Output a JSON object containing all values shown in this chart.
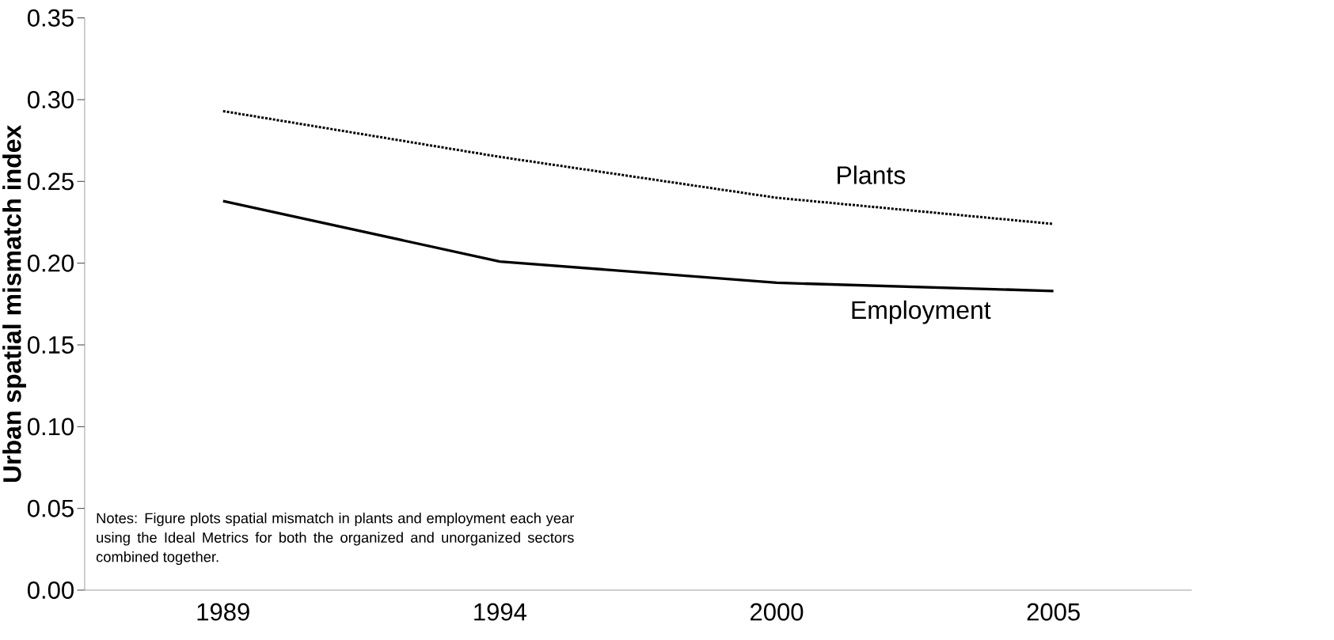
{
  "chart_data": {
    "type": "line",
    "ylabel": "Urban spatial mismatch index",
    "categories": [
      "1989",
      "1994",
      "2000",
      "2005"
    ],
    "series": [
      {
        "name": "Plants",
        "color": "#000000",
        "line_style": "dotted",
        "values": [
          0.293,
          0.265,
          0.24,
          0.224
        ]
      },
      {
        "name": "Employment",
        "color": "#000000",
        "line_style": "solid",
        "values": [
          0.238,
          0.201,
          0.188,
          0.183
        ]
      }
    ],
    "ylim": [
      0,
      0.35
    ],
    "yticks": [
      {
        "value": 0,
        "label": "0.00"
      },
      {
        "value": 0.05,
        "label": "0.05"
      },
      {
        "value": 0.1,
        "label": "0.10"
      },
      {
        "value": 0.15,
        "label": "0.15"
      },
      {
        "value": 0.2,
        "label": "0.20"
      },
      {
        "value": 0.25,
        "label": "0.25"
      },
      {
        "value": 0.3,
        "label": "0.30"
      },
      {
        "value": 0.35,
        "label": "0.35"
      }
    ],
    "grid": false,
    "legend": false,
    "marker": "none",
    "annotations": [
      "Notes: Figure plots spatial mismatch in plants and employment each year using the Ideal Metrics for both the organized and unorganized sectors combined together."
    ]
  }
}
